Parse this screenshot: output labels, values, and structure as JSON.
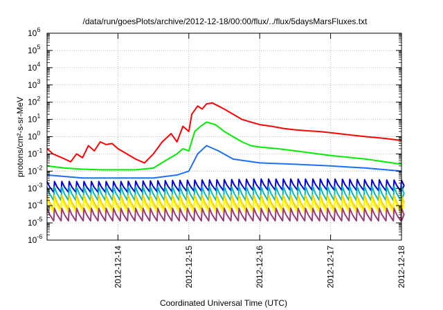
{
  "chart_data": {
    "type": "line",
    "title": "/data/run/goesPlots/archive/2012-12-18/00:00/flux/../flux/5daysMarsFluxes.txt",
    "xlabel": "Coordinated Universal Time (UTC)",
    "ylabel": "protons/cm²-s-sr-MeV",
    "y_scale": "log",
    "ylim": [
      1e-06,
      1000000.0
    ],
    "xlim": [
      "2012-12-13T00:00",
      "2012-12-18T00:00"
    ],
    "grid": true,
    "x_ticks": [
      "2012-12-14",
      "2012-12-15",
      "2012-12-16",
      "2012-12-17",
      "2012-12-18"
    ],
    "y_ticks": [
      "10^-6",
      "10^-5",
      "10^-4",
      "10^-3",
      "10^-2",
      "10^-1",
      "10^0",
      "10^1",
      "10^2",
      "10^3",
      "10^4",
      "10^5",
      "10^6"
    ],
    "sampling": "~2.5 hour sawtooth cycles; values at cycle peaks and troughs",
    "series": [
      {
        "color": "#ff0000",
        "x": [
          "2012-12-13T00:00",
          "2012-12-13T02:00",
          "2012-12-13T05:00",
          "2012-12-13T08:00",
          "2012-12-13T10:00",
          "2012-12-13T12:00",
          "2012-12-13T14:00",
          "2012-12-13T16:00",
          "2012-12-13T18:00",
          "2012-12-13T20:00",
          "2012-12-13T22:00",
          "2012-12-14T00:00",
          "2012-12-14T03:00",
          "2012-12-14T06:00",
          "2012-12-14T09:00",
          "2012-12-14T12:00",
          "2012-12-14T15:00",
          "2012-12-14T18:00",
          "2012-12-14T20:00",
          "2012-12-14T22:00",
          "2012-12-15T00:00",
          "2012-12-15T01:00",
          "2012-12-15T03:00",
          "2012-12-15T04:30",
          "2012-12-15T06:00",
          "2012-12-15T08:00",
          "2012-12-15T10:00",
          "2012-12-15T12:00",
          "2012-12-15T15:00",
          "2012-12-15T18:00",
          "2012-12-15T21:00",
          "2012-12-16T00:00",
          "2012-12-16T04:00",
          "2012-12-16T08:00",
          "2012-12-16T12:00",
          "2012-12-16T16:00",
          "2012-12-16T20:00",
          "2012-12-17T00:00",
          "2012-12-17T06:00",
          "2012-12-17T12:00",
          "2012-12-17T18:00",
          "2012-12-18T00:00"
        ],
        "y": [
          0.2,
          0.1,
          0.06,
          0.035,
          0.1,
          0.06,
          0.3,
          0.15,
          0.5,
          0.35,
          0.4,
          0.2,
          0.1,
          0.05,
          0.03,
          0.1,
          0.5,
          1.5,
          0.5,
          4,
          2,
          20,
          60,
          40,
          80,
          90,
          60,
          40,
          20,
          10,
          7,
          5,
          4,
          3,
          2.5,
          2.2,
          2,
          1.7,
          1.3,
          1.0,
          0.8,
          0.6
        ]
      },
      {
        "color": "#00ee00",
        "x": [
          "2012-12-13T00:00",
          "2012-12-13T06:00",
          "2012-12-13T12:00",
          "2012-12-13T18:00",
          "2012-12-14T00:00",
          "2012-12-14T06:00",
          "2012-12-14T12:00",
          "2012-12-14T16:00",
          "2012-12-14T20:00",
          "2012-12-14T22:00",
          "2012-12-15T00:00",
          "2012-12-15T02:00",
          "2012-12-15T04:00",
          "2012-12-15T06:00",
          "2012-12-15T09:00",
          "2012-12-15T12:00",
          "2012-12-15T15:00",
          "2012-12-15T18:00",
          "2012-12-15T21:00",
          "2012-12-16T00:00",
          "2012-12-16T06:00",
          "2012-12-16T12:00",
          "2012-12-17T00:00",
          "2012-12-17T12:00",
          "2012-12-18T00:00"
        ],
        "y": [
          0.02,
          0.015,
          0.013,
          0.012,
          0.012,
          0.012,
          0.015,
          0.04,
          0.1,
          0.2,
          0.15,
          2,
          4,
          7,
          5,
          2,
          1,
          0.5,
          0.3,
          0.25,
          0.2,
          0.15,
          0.08,
          0.05,
          0.025
        ]
      },
      {
        "color": "#1a6fff",
        "x": [
          "2012-12-13T00:00",
          "2012-12-13T12:00",
          "2012-12-14T00:00",
          "2012-12-14T12:00",
          "2012-12-14T20:00",
          "2012-12-15T00:00",
          "2012-12-15T03:00",
          "2012-12-15T06:00",
          "2012-12-15T10:00",
          "2012-12-15T15:00",
          "2012-12-16T00:00",
          "2012-12-16T12:00",
          "2012-12-17T00:00",
          "2012-12-17T12:00",
          "2012-12-18T00:00"
        ],
        "y": [
          0.006,
          0.004,
          0.004,
          0.004,
          0.006,
          0.01,
          0.1,
          0.3,
          0.15,
          0.05,
          0.03,
          0.025,
          0.02,
          0.015,
          0.01
        ]
      },
      {
        "color": "#0000dd",
        "x": [
          "2012-12-13T00:00",
          "2012-12-14T00:00",
          "2012-12-15T00:00",
          "2012-12-16T00:00",
          "2012-12-17T00:00",
          "2012-12-18T00:00"
        ],
        "y_peak": [
          0.0025,
          0.0025,
          0.003,
          0.0035,
          0.0035,
          0.003
        ],
        "y_trough": [
          0.0006,
          0.0006,
          0.0007,
          0.0008,
          0.0008,
          0.0007
        ]
      },
      {
        "color": "#00bbbb",
        "x": [
          "2012-12-13T00:00",
          "2012-12-18T00:00"
        ],
        "y_peak": [
          0.0012,
          0.0013
        ],
        "y_trough": [
          0.0002,
          0.0002
        ]
      },
      {
        "color": "#ffcc00",
        "x": [
          "2012-12-13T00:00",
          "2012-12-18T00:00"
        ],
        "y_peak": [
          0.0004,
          0.0004
        ],
        "y_trough": [
          6e-05,
          6e-05
        ]
      },
      {
        "color": "#ffff00",
        "x": [
          "2012-12-13T00:00",
          "2012-12-18T00:00"
        ],
        "y_peak": [
          0.00025,
          0.00025
        ],
        "y_trough": [
          4e-05,
          4e-05
        ]
      },
      {
        "color": "#9b3a78",
        "x": [
          "2012-12-13T00:00",
          "2012-12-18T00:00"
        ],
        "y_peak": [
          7e-05,
          7e-05
        ],
        "y_trough": [
          1.3e-05,
          1.3e-05
        ]
      }
    ]
  }
}
